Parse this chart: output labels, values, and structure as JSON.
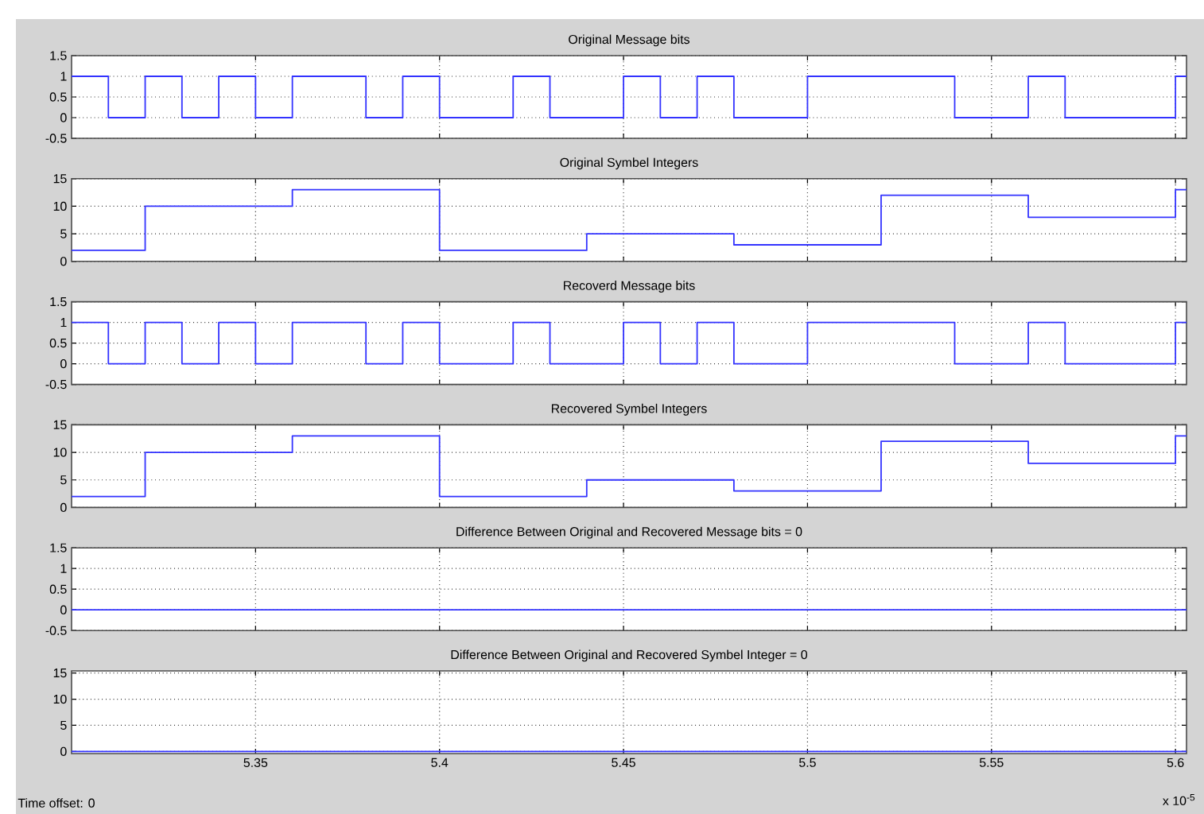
{
  "chart_data": [
    {
      "type": "step",
      "title": "Original Message  bits",
      "x": [
        5.3,
        5.31,
        5.32,
        5.33,
        5.34,
        5.35,
        5.36,
        5.37,
        5.38,
        5.39,
        5.4,
        5.41,
        5.42,
        5.43,
        5.44,
        5.45,
        5.46,
        5.47,
        5.48,
        5.49,
        5.5,
        5.51,
        5.52,
        5.53,
        5.54,
        5.55,
        5.56,
        5.57,
        5.58,
        5.59,
        5.6,
        5.603
      ],
      "values": [
        1,
        0,
        1,
        0,
        1,
        0,
        1,
        1,
        0,
        1,
        0,
        0,
        1,
        0,
        0,
        1,
        0,
        1,
        0,
        0,
        1,
        1,
        1,
        1,
        0,
        0,
        1,
        0,
        0,
        0,
        1,
        1
      ],
      "color": "#3333ff",
      "xlim": [
        5.3,
        5.603
      ],
      "xticks": [
        5.35,
        5.4,
        5.45,
        5.5,
        5.55,
        5.6
      ],
      "ylim": [
        -0.5,
        1.5
      ],
      "yticks": [
        -0.5,
        0,
        0.5,
        1,
        1.5
      ],
      "grid": true,
      "tick_labels": "y"
    },
    {
      "type": "step",
      "title": "Original Symbel Integers",
      "x": [
        5.3,
        5.32,
        5.36,
        5.4,
        5.44,
        5.48,
        5.52,
        5.56,
        5.6,
        5.603
      ],
      "values": [
        2,
        10,
        13,
        2,
        5,
        3,
        12,
        8,
        13,
        13
      ],
      "color": "#3333ff",
      "xlim": [
        5.3,
        5.603
      ],
      "xticks": [
        5.35,
        5.4,
        5.45,
        5.5,
        5.55,
        5.6
      ],
      "ylim": [
        0,
        15
      ],
      "yticks": [
        0,
        5,
        10,
        15
      ],
      "grid": true,
      "tick_labels": "y"
    },
    {
      "type": "step",
      "title": "Recoverd Message bits",
      "x": [
        5.3,
        5.31,
        5.32,
        5.33,
        5.34,
        5.35,
        5.36,
        5.37,
        5.38,
        5.39,
        5.4,
        5.41,
        5.42,
        5.43,
        5.44,
        5.45,
        5.46,
        5.47,
        5.48,
        5.49,
        5.5,
        5.51,
        5.52,
        5.53,
        5.54,
        5.55,
        5.56,
        5.57,
        5.58,
        5.59,
        5.6,
        5.603
      ],
      "values": [
        1,
        0,
        1,
        0,
        1,
        0,
        1,
        1,
        0,
        1,
        0,
        0,
        1,
        0,
        0,
        1,
        0,
        1,
        0,
        0,
        1,
        1,
        1,
        1,
        0,
        0,
        1,
        0,
        0,
        0,
        1,
        1
      ],
      "color": "#3333ff",
      "xlim": [
        5.3,
        5.603
      ],
      "xticks": [
        5.35,
        5.4,
        5.45,
        5.5,
        5.55,
        5.6
      ],
      "ylim": [
        -0.5,
        1.5
      ],
      "yticks": [
        -0.5,
        0,
        0.5,
        1,
        1.5
      ],
      "grid": true,
      "tick_labels": "y"
    },
    {
      "type": "step",
      "title": "Recovered Symbel Integers",
      "x": [
        5.3,
        5.32,
        5.36,
        5.4,
        5.44,
        5.48,
        5.52,
        5.56,
        5.6,
        5.603
      ],
      "values": [
        2,
        10,
        13,
        2,
        5,
        3,
        12,
        8,
        13,
        13
      ],
      "color": "#3333ff",
      "xlim": [
        5.3,
        5.603
      ],
      "xticks": [
        5.35,
        5.4,
        5.45,
        5.5,
        5.55,
        5.6
      ],
      "ylim": [
        0,
        15
      ],
      "yticks": [
        0,
        5,
        10,
        15
      ],
      "grid": true,
      "tick_labels": "y"
    },
    {
      "type": "step",
      "title": "Difference Between Original and Recovered Message bits = 0",
      "x": [
        5.3,
        5.603
      ],
      "values": [
        0,
        0
      ],
      "color": "#3333ff",
      "xlim": [
        5.3,
        5.603
      ],
      "xticks": [
        5.35,
        5.4,
        5.45,
        5.5,
        5.55,
        5.6
      ],
      "ylim": [
        -0.5,
        1.5
      ],
      "yticks": [
        -0.5,
        0,
        0.5,
        1,
        1.5
      ],
      "grid": true,
      "tick_labels": "y"
    },
    {
      "type": "step",
      "title": "Difference Between Original and Recovered Symbel Integer = 0",
      "x": [
        5.3,
        5.603
      ],
      "values": [
        0,
        0
      ],
      "color": "#3333ff",
      "xlim": [
        5.3,
        5.603
      ],
      "xticks": [
        5.35,
        5.4,
        5.45,
        5.5,
        5.55,
        5.6
      ],
      "ylim": [
        -0.4,
        15.4
      ],
      "yticks": [
        0,
        5,
        10,
        15
      ],
      "grid": true,
      "annotations": [
        "Time offset:  0",
        "x 10$^{-5}$"
      ]
    }
  ]
}
